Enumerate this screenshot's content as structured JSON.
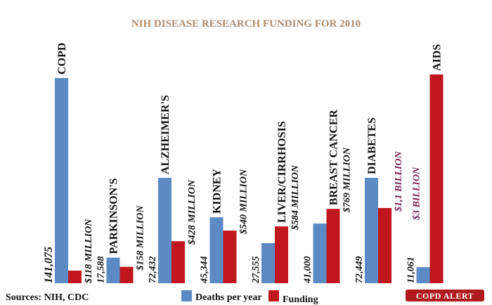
{
  "chart_data": {
    "type": "bar",
    "title": "NIH DISEASE RESEARCH FUNDING FOR 2010",
    "categories": [
      "COPD",
      "PARKINSON'S",
      "ALZHEIMER'S",
      "KIDNEY",
      "LIVER/CIRRHOSIS",
      "BREAST CANCER",
      "DIABETES",
      "AIDS"
    ],
    "series": [
      {
        "name": "Deaths per year",
        "color": "#5b8ac5",
        "values": [
          141075,
          17588,
          72432,
          45344,
          27555,
          41000,
          72449,
          11061
        ],
        "labels": [
          "141,075",
          "17,588",
          "72,432",
          "45,344",
          "27,555",
          "41,000",
          "72,449",
          "11,061"
        ]
      },
      {
        "name": "Funding",
        "color": "#c0161d",
        "values": [
          118,
          158,
          428,
          540,
          584,
          769,
          1100,
          3000
        ],
        "labels": [
          "$118 MILLION",
          "$158 MILLION",
          "$428 MILLION",
          "$540 MILLION",
          "$584 MILLION",
          "$769 MILLION",
          "$1,1 BILLION",
          "$3 BILLION"
        ]
      }
    ],
    "legend_position": "bottom",
    "grid": false
  },
  "footer": {
    "sources": "Sources: NIH, CDC",
    "brand": "COPD ALERT"
  }
}
